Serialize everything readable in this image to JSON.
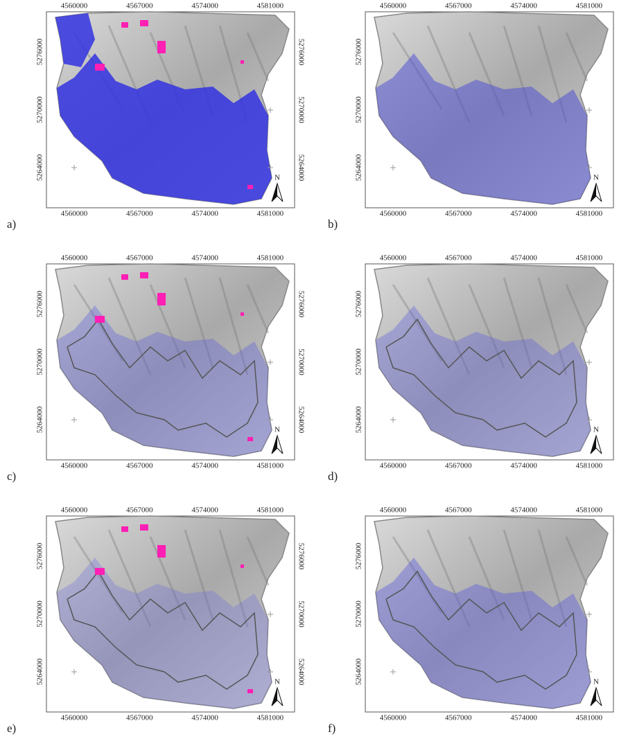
{
  "axes": {
    "x_labels": [
      "4560000",
      "4567000",
      "4574000",
      "4581000"
    ],
    "y_labels": [
      "5276000",
      "5270000",
      "5264000"
    ]
  },
  "north": "N",
  "panels": [
    {
      "label": "a)"
    },
    {
      "label": "b)"
    },
    {
      "label": "c)"
    },
    {
      "label": "d)"
    },
    {
      "label": "e)"
    },
    {
      "label": "f)"
    }
  ]
}
